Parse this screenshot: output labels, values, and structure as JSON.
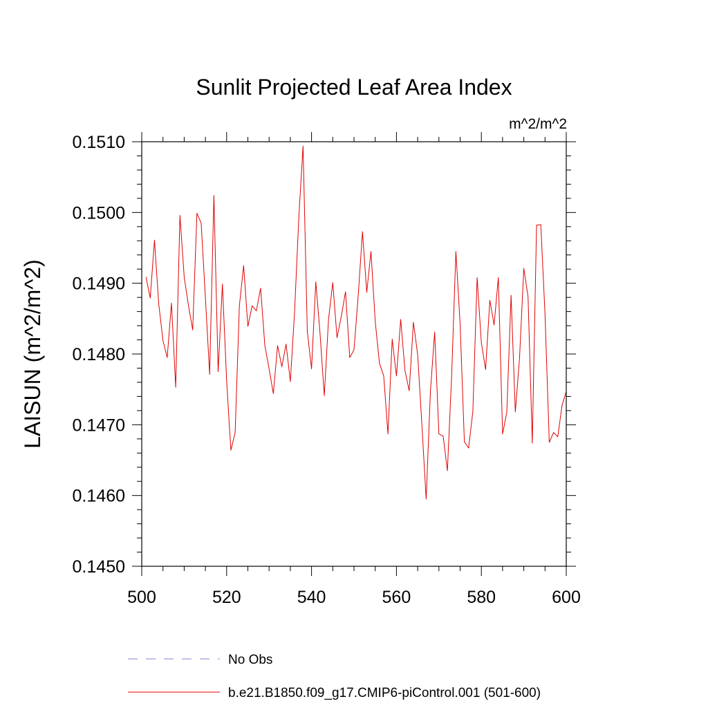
{
  "chart_data": {
    "type": "line",
    "title": "Sunlit Projected Leaf Area Index",
    "units": "m^2/m^2",
    "ylabel": "LAISUN  (m^2/m^2)",
    "xlabel": "",
    "xlim": [
      500,
      600
    ],
    "ylim": [
      0.145,
      0.151
    ],
    "xticks": [
      500,
      520,
      540,
      560,
      580,
      600
    ],
    "yticks": [
      0.145,
      0.146,
      0.147,
      0.148,
      0.149,
      0.15,
      0.151
    ],
    "xtick_labels": [
      "500",
      "520",
      "540",
      "560",
      "580",
      "600"
    ],
    "ytick_labels": [
      "0.1450",
      "0.1460",
      "0.1470",
      "0.1480",
      "0.1490",
      "0.1500",
      "0.1510"
    ],
    "series": [
      {
        "name": "No Obs",
        "color": "#8080c8",
        "dashed": true,
        "values": []
      },
      {
        "name": "b.e21.B1850.f09_g17.CMIP6-piControl.001 (501-600)",
        "color": "#e00000",
        "dashed": false,
        "x": [
          501,
          502,
          503,
          504,
          505,
          506,
          507,
          508,
          509,
          510,
          511,
          512,
          513,
          514,
          515,
          516,
          517,
          518,
          519,
          520,
          521,
          522,
          523,
          524,
          525,
          526,
          527,
          528,
          529,
          530,
          531,
          532,
          533,
          534,
          535,
          536,
          537,
          538,
          539,
          540,
          541,
          542,
          543,
          544,
          545,
          546,
          547,
          548,
          549,
          550,
          551,
          552,
          553,
          554,
          555,
          556,
          557,
          558,
          559,
          560,
          561,
          562,
          563,
          564,
          565,
          566,
          567,
          568,
          569,
          570,
          571,
          572,
          573,
          574,
          575,
          576,
          577,
          578,
          579,
          580,
          581,
          582,
          583,
          584,
          585,
          586,
          587,
          588,
          589,
          590,
          591,
          592,
          593,
          594,
          595,
          596,
          597,
          598,
          599,
          600
        ],
        "values": [
          0.14909,
          0.14879,
          0.14961,
          0.14871,
          0.14819,
          0.14795,
          0.14872,
          0.14753,
          0.14996,
          0.14909,
          0.14869,
          0.14834,
          0.14999,
          0.14985,
          0.14879,
          0.14771,
          0.15024,
          0.14775,
          0.14899,
          0.14762,
          0.14664,
          0.14689,
          0.14868,
          0.14925,
          0.14839,
          0.14868,
          0.14861,
          0.14893,
          0.14812,
          0.14779,
          0.14744,
          0.14812,
          0.14782,
          0.14814,
          0.14761,
          0.14859,
          0.14993,
          0.15094,
          0.14832,
          0.14779,
          0.14902,
          0.14829,
          0.14741,
          0.14849,
          0.14901,
          0.14823,
          0.14853,
          0.14888,
          0.14795,
          0.14806,
          0.14883,
          0.14973,
          0.14887,
          0.14945,
          0.14846,
          0.14787,
          0.14769,
          0.14687,
          0.14821,
          0.14769,
          0.14849,
          0.14777,
          0.14748,
          0.14845,
          0.14799,
          0.14699,
          0.14595,
          0.14747,
          0.14831,
          0.14687,
          0.14684,
          0.14635,
          0.14769,
          0.14945,
          0.14842,
          0.14676,
          0.14667,
          0.14719,
          0.14908,
          0.14816,
          0.14778,
          0.14876,
          0.14841,
          0.14908,
          0.14687,
          0.14718,
          0.14883,
          0.14718,
          0.14795,
          0.14921,
          0.14881,
          0.14674,
          0.14982,
          0.14983,
          0.14856,
          0.14675,
          0.14689,
          0.14683,
          0.14727,
          0.14747
        ]
      }
    ]
  }
}
